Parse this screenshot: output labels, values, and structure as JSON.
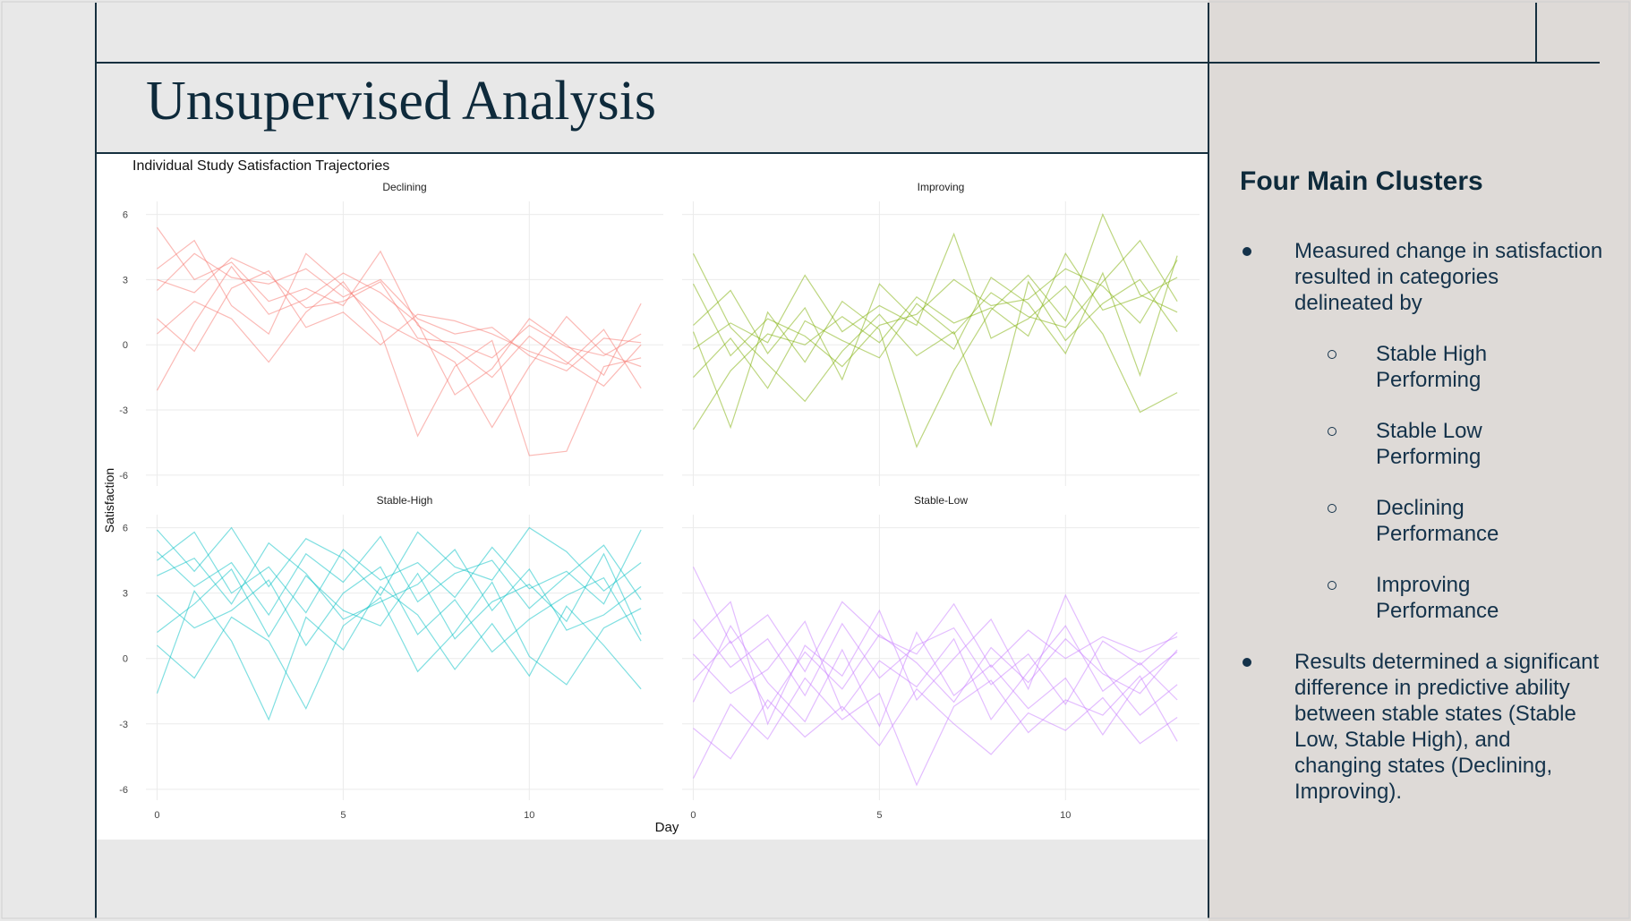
{
  "slide_title": "Unsupervised Analysis",
  "chart_data": {
    "type": "line",
    "title": "Individual Study Satisfaction Trajectories",
    "x_label": "Day",
    "y_label": "Satisfaction",
    "x": [
      0,
      1,
      2,
      3,
      4,
      5,
      6,
      7,
      8,
      9,
      10,
      11,
      12,
      13
    ],
    "xlim": [
      -0.3,
      13.6
    ],
    "ylim": [
      -6.5,
      6.6
    ],
    "xticks": [
      0,
      5,
      10
    ],
    "yticks": [
      -6,
      -3,
      0,
      3,
      6
    ],
    "grid": true,
    "facets": [
      {
        "title": "Declining",
        "color": "#F8766D",
        "series": [
          {
            "values": [
              2.5,
              4.2,
              3.1,
              2.8,
              3.5,
              2.2,
              3.0,
              1.2,
              0.5,
              0.8,
              -0.5,
              -1.2,
              0.3,
              0.1
            ]
          },
          {
            "values": [
              5.4,
              3.0,
              3.8,
              2.0,
              2.6,
              1.8,
              4.3,
              0.9,
              -0.2,
              -1.5,
              0.4,
              -0.8,
              -1.9,
              0.0
            ]
          },
          {
            "values": [
              0.5,
              2.0,
              1.2,
              -0.8,
              1.5,
              2.9,
              0.6,
              -4.2,
              -1.0,
              0.2,
              -5.1,
              -4.9,
              -1.0,
              -0.6
            ]
          },
          {
            "values": [
              -2.1,
              1.0,
              3.6,
              1.4,
              2.1,
              3.3,
              2.4,
              1.0,
              -2.3,
              -1.1,
              1.2,
              0.0,
              -1.4,
              1.9
            ]
          },
          {
            "values": [
              3.5,
              4.8,
              1.8,
              0.5,
              4.2,
              2.7,
              1.1,
              0.2,
              -0.8,
              -3.8,
              -1.0,
              1.3,
              -0.4,
              -1.0
            ]
          },
          {
            "values": [
              1.2,
              -0.3,
              2.6,
              3.4,
              0.8,
              1.5,
              0.0,
              1.4,
              1.1,
              0.5,
              -0.3,
              -0.9,
              0.7,
              -2.0
            ]
          },
          {
            "values": [
              3.0,
              2.4,
              4.0,
              3.2,
              1.7,
              2.0,
              2.9,
              0.3,
              0.1,
              -0.6,
              0.9,
              -0.1,
              -0.5,
              0.5
            ]
          }
        ]
      },
      {
        "title": "Improving",
        "color": "#7CAE00",
        "series": [
          {
            "values": [
              2.8,
              -0.5,
              1.2,
              0.4,
              -1.0,
              0.9,
              1.4,
              3.0,
              1.8,
              2.1,
              3.5,
              2.7,
              1.0,
              3.9
            ]
          },
          {
            "values": [
              -1.5,
              0.3,
              -2.0,
              1.1,
              0.2,
              -0.6,
              1.9,
              0.5,
              2.4,
              1.3,
              0.8,
              2.9,
              4.8,
              2.0
            ]
          },
          {
            "values": [
              0.6,
              -3.8,
              1.5,
              -0.8,
              2.0,
              0.7,
              -4.7,
              -1.2,
              1.6,
              3.2,
              1.1,
              6.0,
              2.3,
              1.5
            ]
          },
          {
            "values": [
              -0.2,
              1.0,
              0.1,
              3.2,
              0.6,
              1.8,
              0.9,
              5.1,
              0.3,
              1.2,
              2.7,
              0.5,
              -3.1,
              -2.2
            ]
          },
          {
            "values": [
              4.2,
              0.8,
              -0.9,
              -2.6,
              -0.3,
              1.4,
              -0.5,
              0.6,
              -3.7,
              2.9,
              0.2,
              1.9,
              3.0,
              0.6
            ]
          },
          {
            "values": [
              -3.9,
              -1.2,
              0.5,
              0.0,
              1.3,
              0.1,
              2.2,
              1.0,
              1.7,
              0.4,
              4.2,
              1.6,
              2.2,
              3.1
            ]
          },
          {
            "values": [
              0.9,
              2.5,
              -0.4,
              1.7,
              -1.6,
              2.8,
              1.1,
              -0.2,
              3.1,
              1.9,
              -0.4,
              3.3,
              -1.4,
              4.1
            ]
          }
        ]
      },
      {
        "title": "Stable-High",
        "color": "#00BFC4",
        "series": [
          {
            "values": [
              4.5,
              5.8,
              3.0,
              4.2,
              2.1,
              5.0,
              3.6,
              4.4,
              2.8,
              5.1,
              3.2,
              4.0,
              2.5,
              5.9
            ]
          },
          {
            "values": [
              1.2,
              2.5,
              4.1,
              1.0,
              3.8,
              2.2,
              1.5,
              3.9,
              0.9,
              2.6,
              3.4,
              1.7,
              4.8,
              1.1
            ]
          },
          {
            "values": [
              -1.6,
              3.1,
              0.8,
              -2.8,
              1.9,
              0.4,
              3.3,
              2.0,
              -0.5,
              1.6,
              -0.8,
              2.4,
              0.6,
              -1.4
            ]
          },
          {
            "values": [
              5.9,
              4.0,
              6.0,
              3.3,
              5.5,
              4.6,
              2.9,
              5.8,
              4.2,
              3.6,
              6.0,
              4.9,
              3.1,
              4.4
            ]
          },
          {
            "values": [
              2.9,
              1.4,
              2.2,
              3.6,
              0.6,
              3.0,
              4.2,
              1.1,
              2.7,
              0.3,
              1.8,
              2.9,
              3.7,
              0.8
            ]
          },
          {
            "values": [
              3.8,
              4.6,
              2.5,
              5.3,
              3.9,
              1.8,
              2.6,
              3.4,
              5.0,
              2.2,
              4.1,
              1.3,
              2.0,
              3.3
            ]
          },
          {
            "values": [
              0.6,
              -0.9,
              1.9,
              0.8,
              -2.3,
              1.5,
              2.8,
              -0.6,
              1.2,
              3.5,
              0.1,
              -1.2,
              1.4,
              2.3
            ]
          },
          {
            "values": [
              4.9,
              3.3,
              4.4,
              2.0,
              4.8,
              3.5,
              5.6,
              2.6,
              3.9,
              4.5,
              2.3,
              3.8,
              5.2,
              2.7
            ]
          }
        ]
      },
      {
        "title": "Stable-Low",
        "color": "#C77CFF",
        "series": [
          {
            "values": [
              -1.0,
              0.8,
              -2.3,
              0.3,
              -1.4,
              1.1,
              -0.2,
              -2.0,
              0.5,
              -1.1,
              0.9,
              -0.7,
              -1.6,
              0.4
            ]
          },
          {
            "values": [
              1.8,
              -0.4,
              0.9,
              -1.7,
              1.6,
              -0.9,
              0.6,
              1.4,
              -1.2,
              0.2,
              -2.1,
              0.8,
              -0.3,
              1.2
            ]
          },
          {
            "values": [
              -3.2,
              -4.6,
              -1.9,
              -3.6,
              -2.2,
              -4.0,
              -1.4,
              -3.0,
              -4.4,
              -2.5,
              -3.3,
              -1.8,
              -3.9,
              -2.7
            ]
          },
          {
            "values": [
              4.2,
              0.7,
              2.0,
              -0.6,
              2.6,
              1.0,
              0.2,
              2.5,
              -0.4,
              1.3,
              0.0,
              1.0,
              0.3,
              1.0
            ]
          },
          {
            "values": [
              -5.5,
              -2.1,
              -3.7,
              -0.9,
              -2.8,
              -1.6,
              -5.8,
              -2.2,
              -1.0,
              -3.4,
              -1.9,
              -2.6,
              -0.8,
              -3.8
            ]
          },
          {
            "values": [
              0.2,
              -1.6,
              -0.5,
              1.7,
              -2.4,
              -0.1,
              -1.3,
              0.9,
              -2.8,
              -0.6,
              1.5,
              -1.5,
              -0.2,
              -1.9
            ]
          },
          {
            "values": [
              -2.0,
              1.5,
              -1.1,
              -2.9,
              0.4,
              -3.1,
              1.2,
              -1.7,
              -0.3,
              -2.3,
              -0.9,
              -3.5,
              -1.0,
              0.3
            ]
          },
          {
            "values": [
              0.9,
              2.6,
              -3.0,
              0.6,
              -0.8,
              2.2,
              -1.9,
              0.0,
              1.8,
              -1.4,
              2.9,
              -0.5,
              -2.6,
              -1.2
            ]
          }
        ]
      }
    ]
  },
  "sidebar": {
    "heading": "Four Main Clusters",
    "bullets": [
      {
        "text": "Measured change in satisfaction resulted in categories delineated by",
        "subitems": [
          "Stable High Performing",
          "Stable Low Performing",
          "Declining Performance",
          "Improving Performance"
        ]
      },
      {
        "text": "Results determined a significant difference in predictive ability between stable states (Stable Low, Stable High), and changing states (Declining, Improving)."
      }
    ]
  }
}
